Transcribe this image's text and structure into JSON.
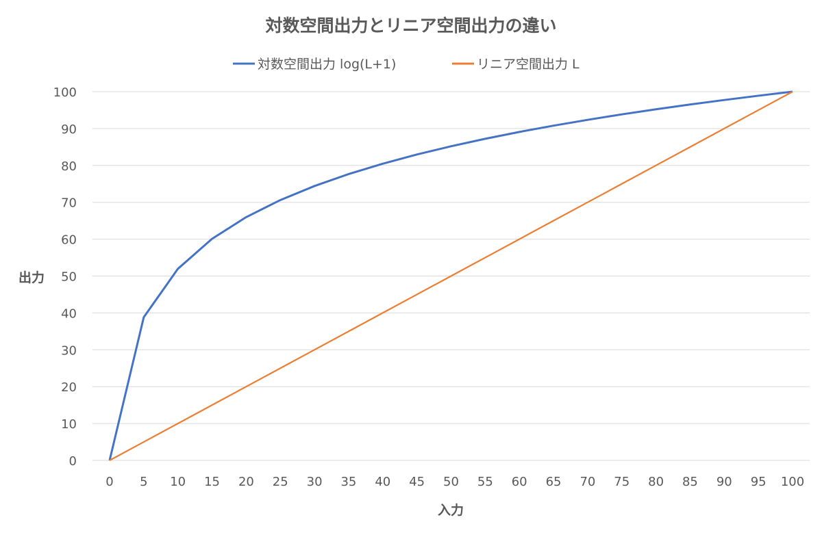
{
  "chart_data": {
    "type": "line",
    "title": "対数空間出力とリニア空間出力の違い",
    "xlabel": "入力",
    "ylabel": "出力",
    "x": [
      0,
      5,
      10,
      15,
      20,
      25,
      30,
      35,
      40,
      45,
      50,
      55,
      60,
      65,
      70,
      75,
      80,
      85,
      90,
      95,
      100
    ],
    "xlim": [
      0,
      100
    ],
    "ylim": [
      0,
      100
    ],
    "yticks": [
      0,
      10,
      20,
      30,
      40,
      50,
      60,
      70,
      80,
      90,
      100
    ],
    "grid": "horizontal",
    "legend_position": "top",
    "series": [
      {
        "name": "対数空間出力 log(L+1)",
        "color": "#4472C4",
        "values": [
          0,
          38.82,
          51.96,
          60.08,
          65.97,
          70.6,
          74.41,
          77.65,
          80.47,
          82.96,
          85.19,
          87.22,
          89.08,
          90.78,
          92.36,
          93.84,
          95.22,
          96.52,
          97.74,
          98.9,
          100
        ]
      },
      {
        "name": "リニア空間出力 L",
        "color": "#ED7D31",
        "values": [
          0,
          5,
          10,
          15,
          20,
          25,
          30,
          35,
          40,
          45,
          50,
          55,
          60,
          65,
          70,
          75,
          80,
          85,
          90,
          95,
          100
        ]
      }
    ]
  }
}
